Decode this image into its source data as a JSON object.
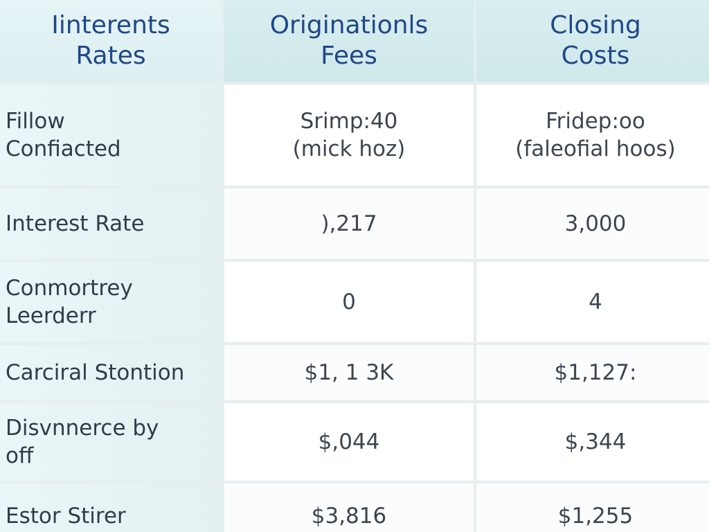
{
  "headers": [
    "Iinterents\nRates",
    "Originationls\nFees",
    "Closing\nCosts"
  ],
  "rows": [
    {
      "label": "Fillow\nConfiacted",
      "col1": "Srimp:40\n(mick hoz)",
      "col2": "Fridep:oo\n(faleofial hoos)"
    },
    {
      "label": "Interest Rate",
      "col1": "),217",
      "col2": "3,000"
    },
    {
      "label": "Conmortrey\nLeerderr",
      "col1": "0",
      "col2": "4"
    },
    {
      "label": "Carciral Stontion",
      "col1": "$1, 1 3K",
      "col2": "$1,127:"
    },
    {
      "label": "Disvnnerce by\noff",
      "col1": "$,044",
      "col2": "$,344"
    },
    {
      "label": "Estor Stirer",
      "col1": "$3,816",
      "col2": "$1,255"
    }
  ]
}
